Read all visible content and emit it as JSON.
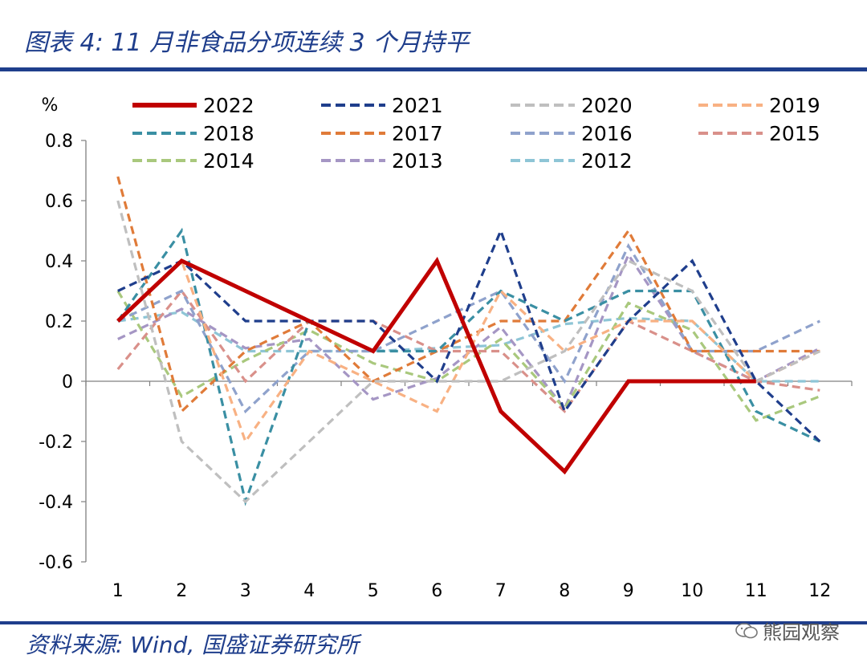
{
  "header": {
    "title": "图表 4:  11 月非食品分项连续 3 个月持平"
  },
  "footer": {
    "source": "资料来源: Wind, 国盛证券研究所",
    "watermark": "熊园观察"
  },
  "chart_data": {
    "type": "line",
    "title": "",
    "ylabel": "%",
    "xlabel": "",
    "ylim": [
      -0.6,
      0.8
    ],
    "yticks": [
      "0.8",
      "0.6",
      "0.4",
      "0.2",
      "0",
      "-0.2",
      "-0.4",
      "-0.6"
    ],
    "yticks_values": [
      0.8,
      0.6,
      0.4,
      0.2,
      0,
      -0.2,
      -0.4,
      -0.6
    ],
    "categories": [
      "1",
      "2",
      "3",
      "4",
      "5",
      "6",
      "7",
      "8",
      "9",
      "10",
      "11",
      "12"
    ],
    "legend_position": "top",
    "series": [
      {
        "name": "2022",
        "color": "#c00000",
        "dashed": false,
        "values": [
          0.2,
          0.4,
          0.3,
          0.2,
          0.1,
          0.4,
          -0.1,
          -0.3,
          0.0,
          0.0,
          0.0,
          null
        ]
      },
      {
        "name": "2021",
        "color": "#1f3e8c",
        "dashed": true,
        "values": [
          0.3,
          0.4,
          0.2,
          0.2,
          0.2,
          0.0,
          0.5,
          -0.1,
          0.2,
          0.4,
          0.0,
          -0.2
        ]
      },
      {
        "name": "2020",
        "color": "#bfbfbf",
        "dashed": true,
        "values": [
          0.6,
          -0.2,
          -0.4,
          -0.2,
          0.0,
          0.0,
          0.0,
          0.1,
          0.4,
          0.3,
          0.0,
          0.1
        ]
      },
      {
        "name": "2019",
        "color": "#f8b183",
        "dashed": true,
        "values": [
          0.2,
          0.4,
          -0.2,
          0.1,
          0.0,
          -0.1,
          0.3,
          0.1,
          0.2,
          0.2,
          0.0,
          0.1
        ]
      },
      {
        "name": "2018",
        "color": "#3a8fa3",
        "dashed": true,
        "values": [
          0.2,
          0.5,
          -0.4,
          0.2,
          0.1,
          0.1,
          0.3,
          0.2,
          0.3,
          0.3,
          -0.1,
          -0.2
        ]
      },
      {
        "name": "2017",
        "color": "#e07b39",
        "dashed": true,
        "values": [
          0.68,
          -0.1,
          0.1,
          0.2,
          0.0,
          0.1,
          0.2,
          0.2,
          0.5,
          0.1,
          0.1,
          0.1
        ]
      },
      {
        "name": "2016",
        "color": "#8fa2cc",
        "dashed": true,
        "values": [
          0.2,
          0.3,
          -0.1,
          0.1,
          0.1,
          0.2,
          0.3,
          0.0,
          0.45,
          0.1,
          0.1,
          0.2
        ]
      },
      {
        "name": "2015",
        "color": "#d9908a",
        "dashed": true,
        "values": [
          0.04,
          0.3,
          0.0,
          0.2,
          0.2,
          0.1,
          0.1,
          -0.1,
          0.2,
          0.1,
          0.0,
          -0.03
        ]
      },
      {
        "name": "2014",
        "color": "#a9c87d",
        "dashed": true,
        "values": [
          0.3,
          -0.05,
          0.07,
          0.17,
          0.06,
          0.0,
          0.14,
          -0.09,
          0.26,
          0.17,
          -0.13,
          -0.05
        ]
      },
      {
        "name": "2013",
        "color": "#a596c4",
        "dashed": true,
        "values": [
          0.14,
          0.24,
          0.11,
          0.14,
          -0.06,
          0.01,
          0.18,
          -0.09,
          0.42,
          0.1,
          0.0,
          0.11
        ]
      },
      {
        "name": "2012",
        "color": "#8ec5d6",
        "dashed": true,
        "values": [
          0.2,
          0.23,
          0.1,
          0.1,
          0.1,
          0.11,
          0.12,
          0.19,
          0.21,
          0.2,
          0.0,
          0.0
        ]
      }
    ]
  }
}
